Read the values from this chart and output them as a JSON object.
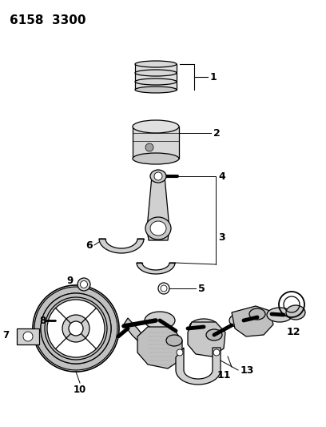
{
  "title": "6158  3300",
  "bg_color": "#ffffff",
  "line_color": "#000000",
  "figsize": [
    4.08,
    5.33
  ],
  "dpi": 100,
  "gray_light": "#d0d0d0",
  "gray_mid": "#a8a8a8",
  "gray_dark": "#888888"
}
